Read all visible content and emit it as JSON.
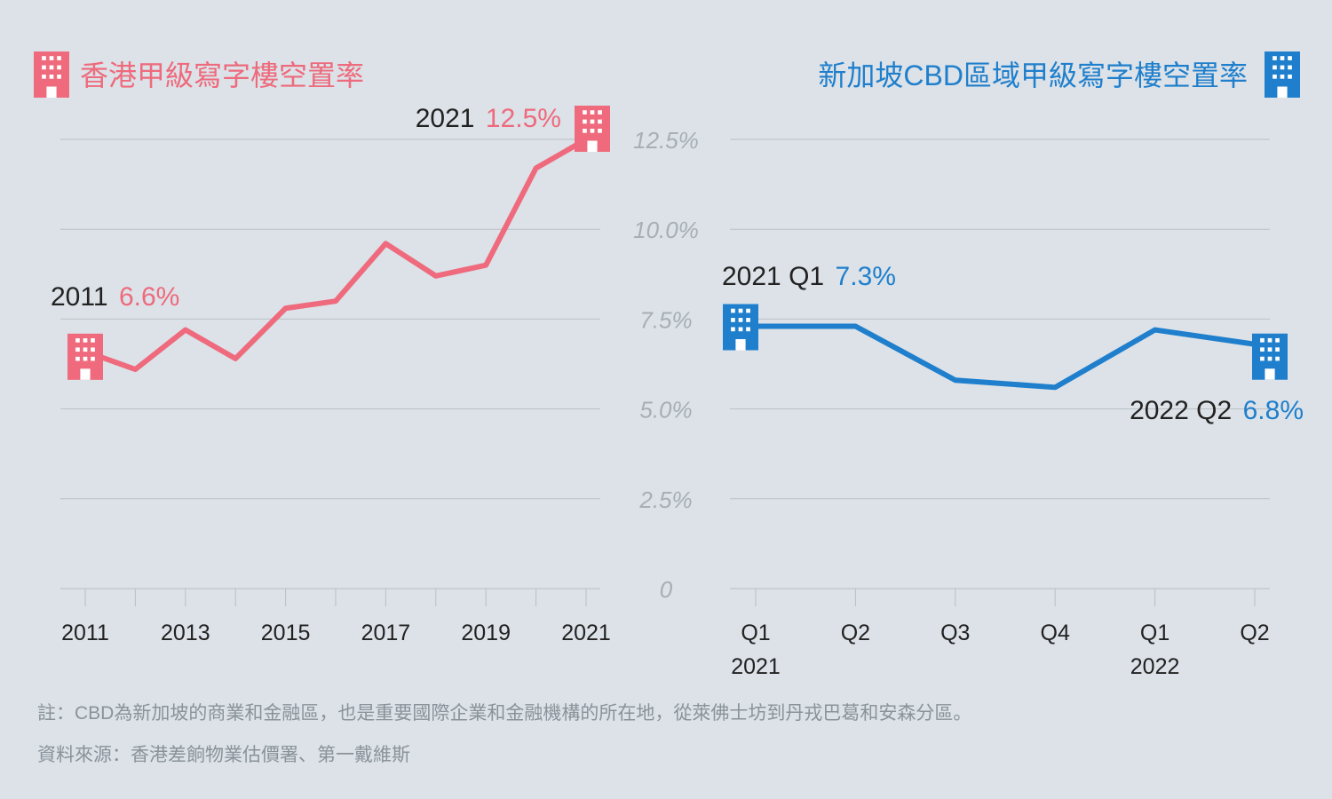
{
  "colors": {
    "hk": "#ee6a7c",
    "sg": "#1f7fcc",
    "background": "#dce2e8",
    "grid": "#b9bfc6"
  },
  "icons": {
    "hk": "building-icon",
    "sg": "building-icon"
  },
  "notes": {
    "note": "註：CBD為新加坡的商業和金融區，也是重要國際企業和金融機構的所在地，從萊佛士坊到丹戎巴葛和安森分區。",
    "source": "資料來源：香港差餉物業估價署、第一戴維斯"
  },
  "chart_data": [
    {
      "type": "line",
      "title": "香港甲級寫字樓空置率",
      "x": [
        2011,
        2012,
        2013,
        2014,
        2015,
        2016,
        2017,
        2018,
        2019,
        2020,
        2021
      ],
      "x_tick_labels": [
        "2011",
        "2013",
        "2015",
        "2017",
        "2019",
        "2021"
      ],
      "series": [
        {
          "values": [
            6.6,
            6.1,
            7.2,
            6.4,
            7.8,
            8.0,
            9.6,
            8.7,
            9.0,
            11.7,
            12.5
          ]
        }
      ],
      "ylim": [
        0,
        12.5
      ],
      "y_tick_labels": [
        "0",
        "2.5%",
        "5.0%",
        "7.5%",
        "10.0%",
        "12.5%"
      ],
      "grid": true,
      "annotations": [
        {
          "year": "2011",
          "value": "6.6%"
        },
        {
          "year": "2021",
          "value": "12.5%"
        }
      ]
    },
    {
      "type": "line",
      "title": "新加坡CBD區域甲級寫字樓空置率",
      "categories": [
        "Q1",
        "Q2",
        "Q3",
        "Q4",
        "Q1",
        "Q2"
      ],
      "year_labels": [
        "2021",
        "",
        "",
        "",
        "2022",
        ""
      ],
      "series": [
        {
          "values": [
            7.3,
            7.3,
            5.8,
            5.6,
            7.2,
            6.8
          ]
        }
      ],
      "ylim": [
        0,
        12.5
      ],
      "grid": true,
      "annotations": [
        {
          "year": "2021 Q1",
          "value": "7.3%"
        },
        {
          "year": "2022 Q2",
          "value": "6.8%"
        }
      ]
    }
  ]
}
